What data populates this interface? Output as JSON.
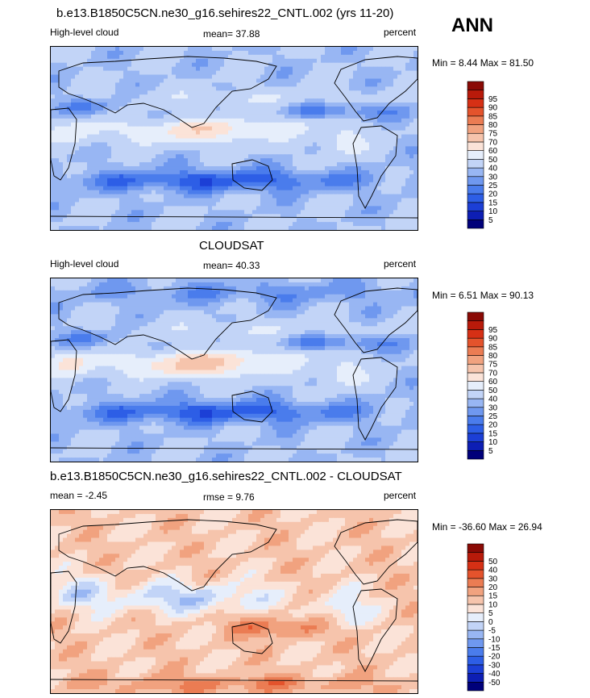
{
  "header": {
    "title": "b.e13.B1850C5CN.ne30_g16.sehires22_CNTL.002 (yrs 11-20)",
    "season": "ANN"
  },
  "colors": {
    "abs_scale": [
      "#00007a",
      "#0d1eb4",
      "#1c3fd6",
      "#2d5ee6",
      "#4a7cec",
      "#6f98ef",
      "#98b6f3",
      "#c2d4f7",
      "#e6eefb",
      "#fbe3d8",
      "#f6c4ac",
      "#f1a27f",
      "#eb7c53",
      "#e4532c",
      "#d63015",
      "#b81a0a",
      "#8a0a05"
    ],
    "diff_scale": [
      "#00007a",
      "#0d1eb4",
      "#1c3fd6",
      "#2d5ee6",
      "#4a7cec",
      "#6f98ef",
      "#98b6f3",
      "#c2d4f7",
      "#e6eefb",
      "#fbe3d8",
      "#f6c4ac",
      "#f1a27f",
      "#eb7c53",
      "#e4532c",
      "#d63015",
      "#b81a0a",
      "#8a0a05"
    ],
    "coast": "#000000"
  },
  "chart_data": [
    {
      "type": "heatmap",
      "title": "b.e13.B1850C5CN.ne30_g16.sehires22_CNTL.002 (yrs 11-20)",
      "left_label": "High-level cloud",
      "center_label": "mean=  37.88",
      "right_label": "percent",
      "minmax_label": "Min =  8.44 Max =  81.50",
      "mean": 37.88,
      "min": 8.44,
      "max": 81.5,
      "units": "percent",
      "colorbar_levels": [
        "5",
        "10",
        "15",
        "20",
        "25",
        "30",
        "40",
        "50",
        "60",
        "70",
        "75",
        "80",
        "85",
        "90",
        "95"
      ]
    },
    {
      "type": "heatmap",
      "title": "CLOUDSAT",
      "left_label": "High-level cloud",
      "center_label": "mean=  40.33",
      "right_label": "percent",
      "minmax_label": "Min =  6.51 Max =  90.13",
      "mean": 40.33,
      "min": 6.51,
      "max": 90.13,
      "units": "percent",
      "colorbar_levels": [
        "5",
        "10",
        "15",
        "20",
        "25",
        "30",
        "40",
        "50",
        "60",
        "70",
        "75",
        "80",
        "85",
        "90",
        "95"
      ]
    },
    {
      "type": "heatmap",
      "title": "b.e13.B1850C5CN.ne30_g16.sehires22_CNTL.002 - CLOUDSAT",
      "left_label": "mean =  -2.45",
      "center_label": "rmse =    9.76",
      "right_label": "percent",
      "minmax_label": "Min = -36.60 Max =  26.94",
      "mean": -2.45,
      "rmse": 9.76,
      "min": -36.6,
      "max": 26.94,
      "units": "percent",
      "colorbar_levels": [
        "-50",
        "-40",
        "-30",
        "-20",
        "-15",
        "-10",
        "-5",
        "0",
        "5",
        "10",
        "15",
        "20",
        "30",
        "40",
        "50"
      ]
    }
  ]
}
